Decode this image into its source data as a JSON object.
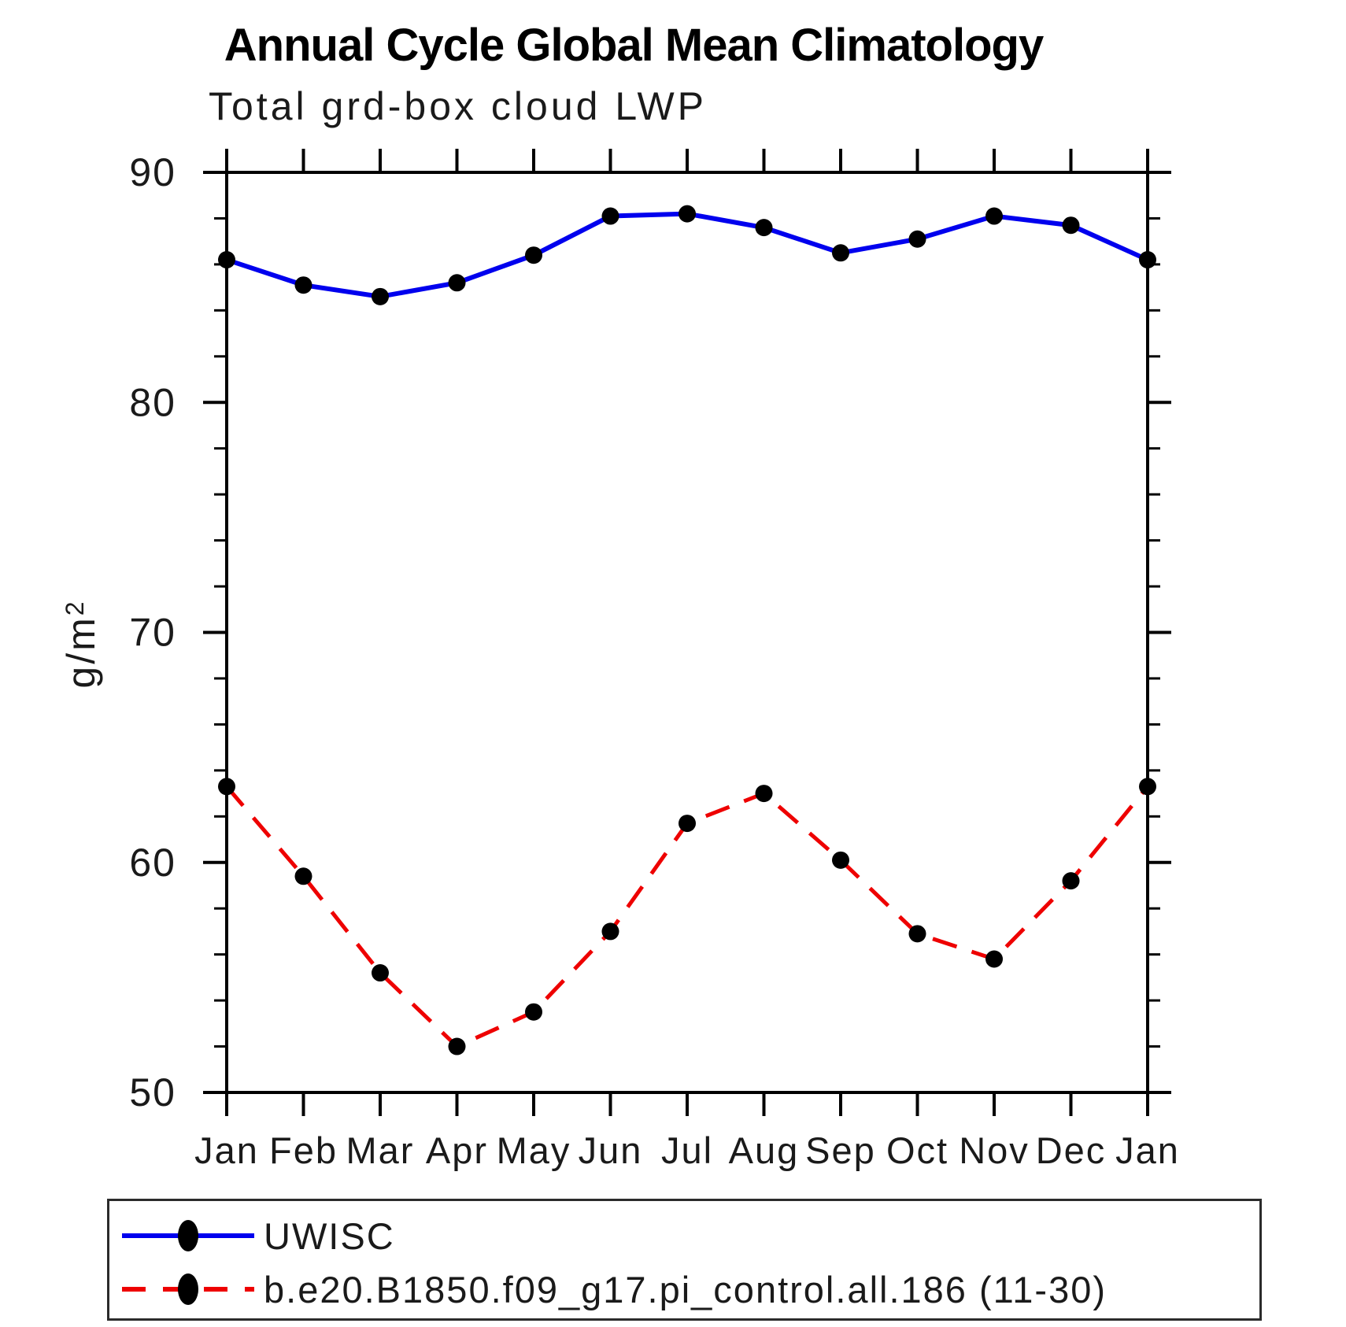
{
  "title": "Annual Cycle Global Mean Climatology",
  "subtitle": "Total grd-box cloud LWP",
  "y_axis_label": {
    "base": "g/m",
    "exponent": "2"
  },
  "legend": {
    "series": [
      {
        "label": "UWISC"
      },
      {
        "label": "b.e20.B1850.f09_g17.pi_control.all.186 (11-30)"
      }
    ]
  },
  "colors": {
    "uwisc_line": "#0000EE",
    "model_line": "#EE0000",
    "marker": "#000000",
    "axis": "#000000"
  },
  "chart_data": {
    "type": "line",
    "title": "Annual Cycle Global Mean Climatology",
    "subtitle": "Total grd-box cloud LWP",
    "ylabel": "g/m²",
    "xlabel": "",
    "categories": [
      "Jan",
      "Feb",
      "Mar",
      "Apr",
      "May",
      "Jun",
      "Jul",
      "Aug",
      "Sep",
      "Oct",
      "Nov",
      "Dec",
      "Jan"
    ],
    "series": [
      {
        "name": "UWISC",
        "color": "#0000EE",
        "style": "solid",
        "marker": "filled-circle",
        "marker_color": "#000000",
        "values": [
          86.2,
          85.1,
          84.6,
          85.2,
          86.4,
          88.1,
          88.2,
          87.6,
          86.5,
          87.1,
          88.1,
          87.7,
          86.2
        ]
      },
      {
        "name": "b.e20.B1850.f09_g17.pi_control.all.186 (11-30)",
        "color": "#EE0000",
        "style": "dashed",
        "marker": "filled-circle",
        "marker_color": "#000000",
        "values": [
          63.3,
          59.4,
          55.2,
          52.0,
          53.5,
          57.0,
          61.7,
          63.0,
          60.1,
          56.9,
          55.8,
          59.2,
          63.3
        ]
      }
    ],
    "ylim": [
      50,
      90
    ],
    "yticks": [
      50,
      60,
      70,
      80,
      90
    ],
    "minor_tick_step": 2,
    "grid": false,
    "legend_position": "bottom-left-box"
  }
}
